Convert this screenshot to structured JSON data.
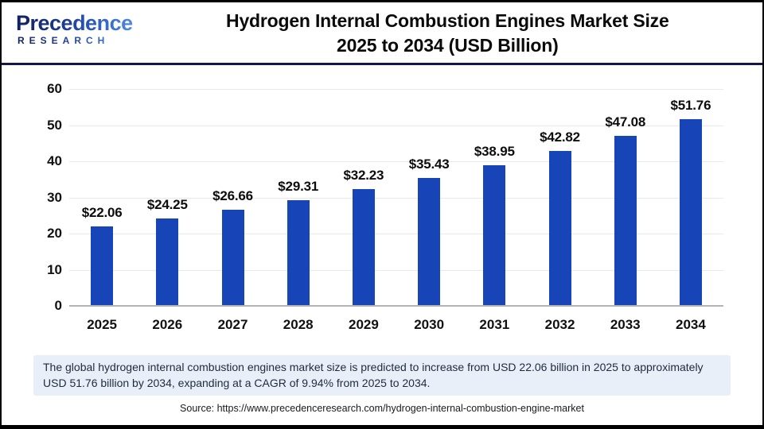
{
  "header": {
    "logo": {
      "brand": "Precedence",
      "sub": "RESEARCH"
    },
    "title_line1": "Hydrogen Internal Combustion Engines Market Size",
    "title_line2": "2025 to 2034 (USD Billion)"
  },
  "chart_data": {
    "type": "bar",
    "title": "Hydrogen Internal Combustion Engines Market Size 2025 to 2034 (USD Billion)",
    "categories": [
      "2025",
      "2026",
      "2027",
      "2028",
      "2029",
      "2030",
      "2031",
      "2032",
      "2033",
      "2034"
    ],
    "values": [
      22.06,
      24.25,
      26.66,
      29.31,
      32.23,
      35.43,
      38.95,
      42.82,
      47.08,
      51.76
    ],
    "value_labels": [
      "$22.06",
      "$24.25",
      "$26.66",
      "$29.31",
      "$32.23",
      "$35.43",
      "$38.95",
      "$42.82",
      "$47.08",
      "$51.76"
    ],
    "xlabel": "",
    "ylabel": "",
    "ylim": [
      0,
      60
    ],
    "yticks": [
      0,
      10,
      20,
      30,
      40,
      50,
      60
    ],
    "grid": true,
    "legend": false,
    "bar_color": "#1745b8"
  },
  "footer": {
    "description": "The global hydrogen internal combustion engines market size is predicted to increase from USD 22.06 billion in 2025 to approximately USD 51.76 billion by 2034, expanding at a CAGR of 9.94% from 2025 to 2034.",
    "source": "Source: https://www.precedenceresearch.com/hydrogen-internal-combustion-engine-market"
  },
  "colors": {
    "bar": "#1745b8",
    "header_rule": "#15154e",
    "description_bg": "#e9eff9",
    "gridline": "#e9e9e9",
    "axis_baseline": "#b3b3b3"
  }
}
